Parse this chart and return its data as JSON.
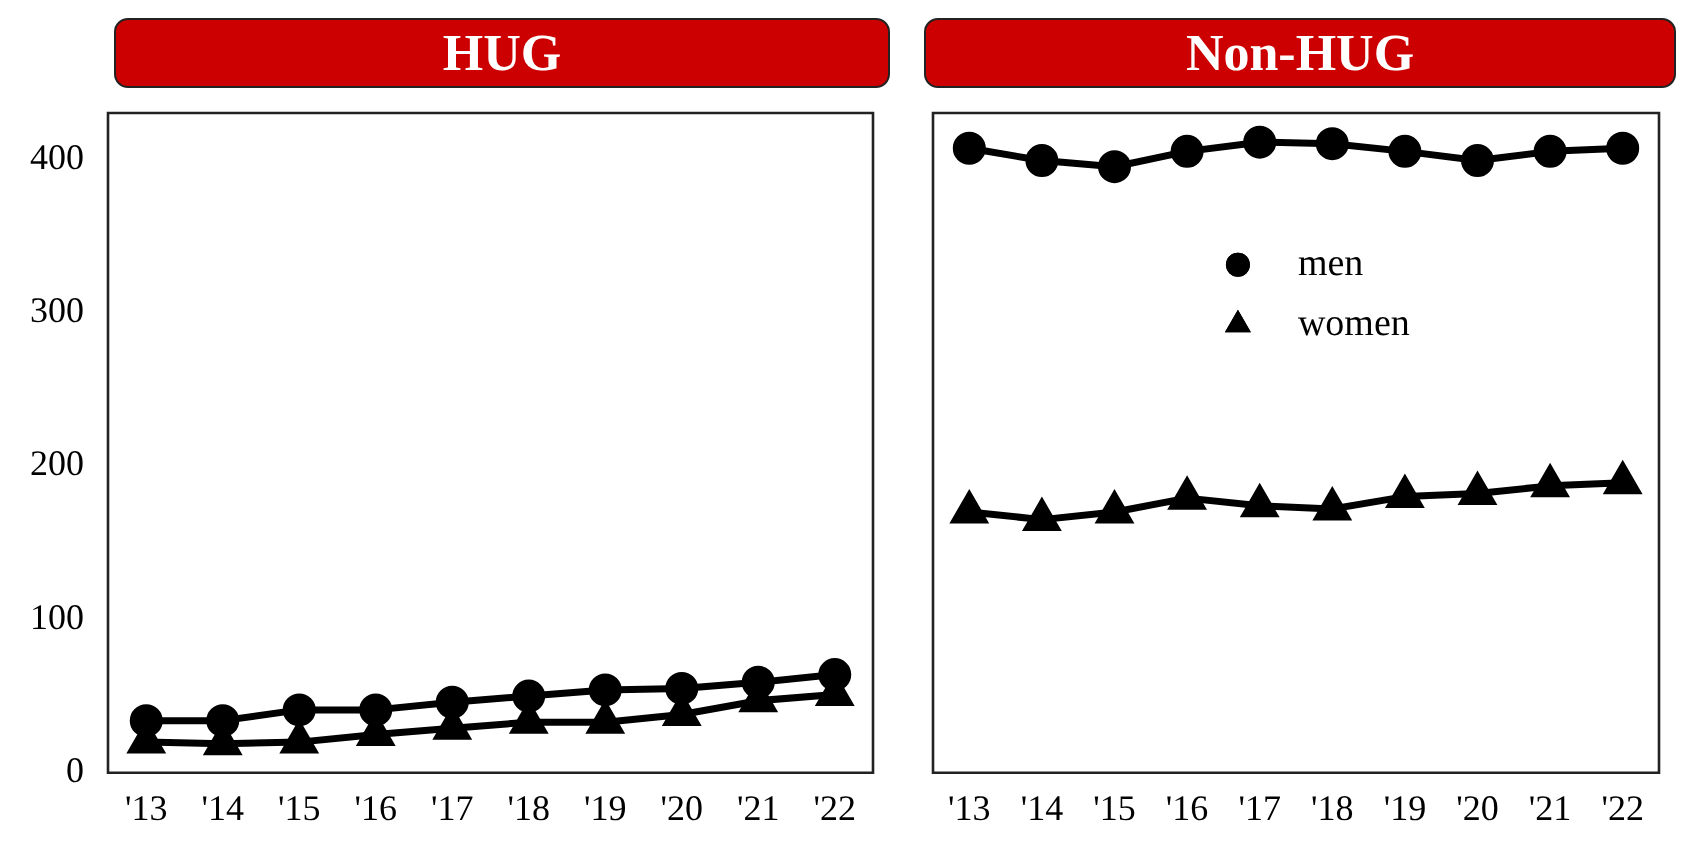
{
  "chart_data": [
    {
      "type": "line",
      "title": "HUG",
      "categories": [
        "'13",
        "'14",
        "'15",
        "'16",
        "'17",
        "'18",
        "'19",
        "'20",
        "'21",
        "'22"
      ],
      "ylim": [
        0,
        430
      ],
      "yticks": [
        0,
        100,
        200,
        300,
        400
      ],
      "grid": false,
      "legend": false,
      "line_style": "solid",
      "series": [
        {
          "color": "#000000",
          "marker": "circle",
          "values": [
            34,
            34,
            41,
            41,
            46,
            50,
            54,
            55,
            59,
            64
          ]
        },
        {
          "color": "#000000",
          "marker": "triangle",
          "values": [
            20,
            19,
            20,
            25,
            29,
            33,
            33,
            38,
            47,
            51
          ]
        }
      ]
    },
    {
      "type": "line",
      "title": "Non-HUG",
      "categories": [
        "'13",
        "'14",
        "'15",
        "'16",
        "'17",
        "'18",
        "'19",
        "'20",
        "'21",
        "'22"
      ],
      "ylim": [
        0,
        430
      ],
      "yticks": [
        0,
        100,
        200,
        300,
        400
      ],
      "grid": false,
      "legend": "top",
      "tick_labels": "x",
      "line_style": "solid",
      "series": [
        {
          "name": "men",
          "color": "#000000",
          "marker": "circle",
          "values": [
            407,
            399,
            395,
            405,
            411,
            410,
            405,
            399,
            405,
            407
          ]
        },
        {
          "name": "women",
          "color": "#000000",
          "marker": "triangle",
          "values": [
            170,
            165,
            170,
            179,
            174,
            172,
            180,
            182,
            187,
            189
          ]
        }
      ]
    }
  ]
}
